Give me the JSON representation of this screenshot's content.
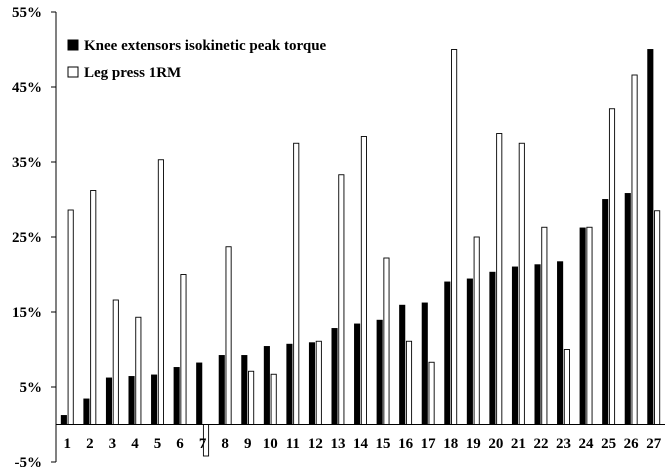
{
  "chart_data": {
    "type": "bar",
    "categories": [
      "1",
      "2",
      "3",
      "4",
      "5",
      "6",
      "7",
      "8",
      "9",
      "10",
      "11",
      "12",
      "13",
      "14",
      "15",
      "16",
      "17",
      "18",
      "19",
      "20",
      "21",
      "22",
      "23",
      "24",
      "25",
      "26",
      "27"
    ],
    "series": [
      {
        "name": "Knee extensors isokinetic peak torque",
        "color": "#000000",
        "values": [
          1.2,
          3.4,
          6.2,
          6.4,
          6.6,
          7.6,
          8.2,
          9.2,
          9.2,
          10.4,
          10.7,
          10.9,
          12.8,
          13.4,
          13.9,
          15.9,
          16.2,
          19.0,
          19.4,
          20.3,
          21.0,
          21.3,
          21.7,
          26.2,
          30.0,
          30.8,
          50.0
        ],
        "fill": "solid"
      },
      {
        "name": "Leg press 1RM",
        "color": "#ffffff",
        "values": [
          28.6,
          31.2,
          16.6,
          14.3,
          35.3,
          20.0,
          -4.2,
          23.7,
          7.1,
          6.7,
          37.5,
          11.1,
          33.3,
          38.4,
          22.2,
          11.1,
          8.3,
          50.0,
          25.0,
          38.8,
          37.5,
          26.3,
          10.0,
          26.3,
          42.1,
          46.6,
          28.5
        ],
        "fill": "hollow"
      }
    ],
    "yticks": [
      "-5%",
      "5%",
      "15%",
      "25%",
      "35%",
      "45%",
      "55%"
    ],
    "ytick_values": [
      -5,
      5,
      15,
      25,
      35,
      45,
      55
    ],
    "ylim": [
      -5,
      55
    ],
    "title": "",
    "xlabel": "",
    "ylabel": "",
    "grid": false,
    "legend_position": "top-left"
  }
}
